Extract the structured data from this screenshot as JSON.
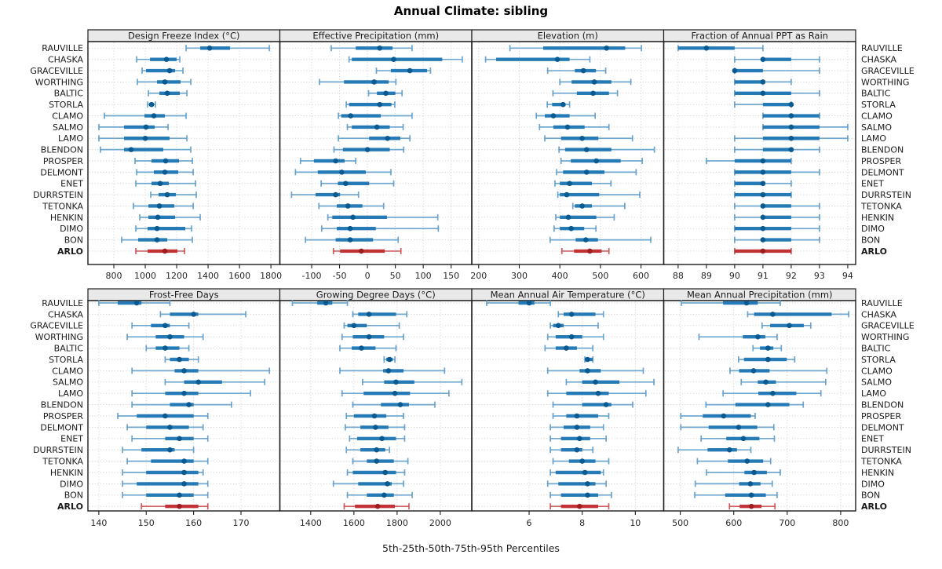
{
  "title": "Annual Climate: sibling",
  "caption": "5th-25th-50th-75th-95th Percentiles",
  "colors": {
    "blue_whisker": "#5b9bc9",
    "blue_bar": "#1f77b4",
    "blue_dot": "#0a5a92",
    "red_whisker": "#cc4a4c",
    "red_bar": "#bf2d30",
    "red_dot": "#9d1d20",
    "strip_bg": "#e9e9e9",
    "grid": "#c8c8c8",
    "border": "#1c1c1c",
    "text": "#1a1a1a",
    "axis_text": "#262626"
  },
  "chart_data": {
    "type": "dotplot-percentiles",
    "percentiles": [
      "5th",
      "25th",
      "50th",
      "75th",
      "95th"
    ],
    "legend_note": "5th-25th-50th-75th-95th Percentiles",
    "highlight": "ARLO",
    "stations": [
      "RAUVILLE",
      "CHASKA",
      "GRACEVILLE",
      "WORTHING",
      "BALTIC",
      "STORLA",
      "CLAMO",
      "SALMO",
      "LAMO",
      "BLENDON",
      "PROSPER",
      "DELMONT",
      "ENET",
      "DURRSTEIN",
      "TETONKA",
      "HENKIN",
      "DIMO",
      "BON",
      "ARLO"
    ],
    "panels": [
      {
        "title": "Design Freeze Index (°C)",
        "ticks": [
          800,
          1000,
          1200,
          1400,
          1600,
          1800
        ],
        "xlim": [
          635,
          1857
        ],
        "values": [
          [
            1260,
            1350,
            1410,
            1540,
            1790
          ],
          [
            945,
            1030,
            1135,
            1200,
            1220
          ],
          [
            980,
            1005,
            1155,
            1190,
            1240
          ],
          [
            950,
            1075,
            1125,
            1225,
            1290
          ],
          [
            1020,
            1090,
            1140,
            1220,
            1265
          ],
          [
            1015,
            1025,
            1040,
            1055,
            1065
          ],
          [
            740,
            995,
            1055,
            1125,
            1260
          ],
          [
            705,
            865,
            1005,
            1060,
            1145
          ],
          [
            705,
            865,
            1000,
            1155,
            1265
          ],
          [
            715,
            865,
            910,
            1115,
            1290
          ],
          [
            935,
            1040,
            1130,
            1215,
            1300
          ],
          [
            945,
            1055,
            1125,
            1210,
            1305
          ],
          [
            940,
            1040,
            1095,
            1150,
            1320
          ],
          [
            1035,
            1085,
            1140,
            1195,
            1325
          ],
          [
            925,
            1020,
            1090,
            1185,
            1305
          ],
          [
            965,
            1020,
            1080,
            1190,
            1350
          ],
          [
            940,
            1015,
            1075,
            1255,
            1295
          ],
          [
            850,
            955,
            1075,
            1140,
            1300
          ],
          [
            940,
            1015,
            1125,
            1205,
            1250
          ]
        ]
      },
      {
        "title": "Effective Precipitation (mm)",
        "ticks": [
          -100,
          -50,
          0,
          50,
          100,
          150
        ],
        "xlim": [
          -157,
          187
        ],
        "values": [
          [
            -65,
            -21,
            22,
            45,
            80
          ],
          [
            -33,
            -28,
            47,
            134,
            170
          ],
          [
            16,
            42,
            76,
            107,
            113
          ],
          [
            -86,
            -42,
            12,
            38,
            51
          ],
          [
            2,
            17,
            33,
            50,
            62
          ],
          [
            -38,
            -33,
            22,
            43,
            49
          ],
          [
            -52,
            -47,
            -30,
            24,
            80
          ],
          [
            -36,
            -28,
            17,
            40,
            64
          ],
          [
            -52,
            3,
            36,
            59,
            76
          ],
          [
            -60,
            -44,
            0,
            40,
            65
          ],
          [
            -120,
            -96,
            -57,
            -41,
            -21
          ],
          [
            -129,
            -89,
            -46,
            -3,
            42
          ],
          [
            -83,
            -53,
            -39,
            3,
            47
          ],
          [
            -136,
            -93,
            -57,
            -49,
            -16
          ],
          [
            -87,
            -55,
            -35,
            -9,
            29
          ],
          [
            -71,
            -63,
            -26,
            35,
            126
          ],
          [
            -82,
            -55,
            -31,
            15,
            127
          ],
          [
            -111,
            -57,
            -31,
            10,
            55
          ],
          [
            -61,
            -49,
            -11,
            31,
            60
          ]
        ]
      },
      {
        "title": "Elevation (m)",
        "ticks": [
          200,
          300,
          400,
          500,
          600
        ],
        "xlim": [
          183,
          656
        ],
        "values": [
          [
            277,
            359,
            515,
            561,
            601
          ],
          [
            217,
            243,
            394,
            424,
            474
          ],
          [
            370,
            437,
            458,
            489,
            513
          ],
          [
            400,
            429,
            485,
            527,
            575
          ],
          [
            383,
            442,
            482,
            521,
            542
          ],
          [
            369,
            381,
            408,
            414,
            424
          ],
          [
            342,
            363,
            384,
            424,
            487
          ],
          [
            350,
            384,
            419,
            461,
            521
          ],
          [
            363,
            403,
            455,
            495,
            579
          ],
          [
            398,
            413,
            466,
            527,
            633
          ],
          [
            403,
            427,
            490,
            550,
            603
          ],
          [
            392,
            408,
            466,
            510,
            588
          ],
          [
            388,
            400,
            424,
            479,
            526
          ],
          [
            395,
            400,
            417,
            497,
            597
          ],
          [
            432,
            437,
            455,
            479,
            560
          ],
          [
            390,
            400,
            421,
            490,
            534
          ],
          [
            386,
            400,
            428,
            460,
            489
          ],
          [
            376,
            439,
            464,
            494,
            624
          ],
          [
            405,
            435,
            474,
            503,
            521
          ]
        ]
      },
      {
        "title": "Fraction of Annual PPT as Rain",
        "ticks": [
          88,
          89,
          90,
          91,
          92,
          93,
          94
        ],
        "xlim": [
          87.49,
          94.28
        ],
        "values": [
          [
            88,
            88,
            89,
            90,
            91
          ],
          [
            90,
            91,
            91,
            92,
            93
          ],
          [
            90,
            90,
            90,
            91,
            93
          ],
          [
            90,
            90,
            91,
            91,
            92
          ],
          [
            90,
            90,
            91,
            92,
            93
          ],
          [
            90,
            91,
            92,
            92,
            92
          ],
          [
            91,
            91,
            92,
            93,
            93
          ],
          [
            91,
            91,
            92,
            93,
            94
          ],
          [
            90,
            91,
            92,
            93,
            94
          ],
          [
            90,
            91,
            92,
            92,
            93
          ],
          [
            89,
            90,
            91,
            92,
            92
          ],
          [
            90,
            90,
            91,
            92,
            93
          ],
          [
            90,
            90,
            91,
            91,
            92
          ],
          [
            90,
            90,
            91,
            92,
            92
          ],
          [
            90,
            91,
            91,
            92,
            93
          ],
          [
            90,
            91,
            91,
            92,
            93
          ],
          [
            90,
            90,
            91,
            92,
            93
          ],
          [
            90,
            91,
            91,
            92,
            93
          ],
          [
            90,
            90,
            91,
            92,
            92
          ]
        ]
      },
      {
        "title": "Frost-Free Days",
        "ticks": [
          140,
          150,
          160,
          170
        ],
        "xlim": [
          137.7,
          178.2
        ],
        "values": [
          [
            140,
            144,
            148,
            149,
            155
          ],
          [
            153,
            155,
            160,
            161,
            171
          ],
          [
            147,
            151,
            154,
            155,
            159
          ],
          [
            146,
            152,
            155,
            158,
            162
          ],
          [
            150,
            152,
            154,
            157,
            159
          ],
          [
            154,
            155,
            157,
            159,
            161
          ],
          [
            147,
            156,
            158,
            161,
            176
          ],
          [
            154,
            158,
            161,
            166,
            175
          ],
          [
            147,
            154,
            158,
            161,
            172
          ],
          [
            147,
            155,
            159,
            160,
            168
          ],
          [
            144,
            148,
            154,
            160,
            163
          ],
          [
            146,
            150,
            155,
            159,
            162
          ],
          [
            147,
            154,
            157,
            160,
            163
          ],
          [
            145,
            149,
            155,
            156,
            160
          ],
          [
            146,
            151,
            158,
            160,
            163
          ],
          [
            145,
            150,
            158,
            161,
            162
          ],
          [
            145,
            148,
            158,
            161,
            163
          ],
          [
            145,
            150,
            157,
            160,
            163
          ],
          [
            149,
            154,
            157,
            161,
            163
          ]
        ]
      },
      {
        "title": "Growing Degree Days (°C)",
        "ticks": [
          1400,
          1600,
          1800,
          2000
        ],
        "xlim": [
          1257,
          2146
        ],
        "values": [
          [
            1315,
            1430,
            1470,
            1500,
            1570
          ],
          [
            1595,
            1620,
            1670,
            1795,
            1845
          ],
          [
            1555,
            1570,
            1600,
            1660,
            1810
          ],
          [
            1545,
            1595,
            1670,
            1740,
            1830
          ],
          [
            1535,
            1590,
            1635,
            1700,
            1795
          ],
          [
            1740,
            1750,
            1765,
            1780,
            1790
          ],
          [
            1535,
            1735,
            1760,
            1830,
            2020
          ],
          [
            1640,
            1740,
            1795,
            1880,
            2100
          ],
          [
            1545,
            1645,
            1790,
            1860,
            2040
          ],
          [
            1595,
            1725,
            1815,
            1855,
            1975
          ],
          [
            1565,
            1600,
            1695,
            1750,
            1830
          ],
          [
            1560,
            1630,
            1700,
            1760,
            1835
          ],
          [
            1580,
            1615,
            1730,
            1795,
            1835
          ],
          [
            1565,
            1630,
            1705,
            1745,
            1765
          ],
          [
            1595,
            1660,
            1705,
            1785,
            1850
          ],
          [
            1570,
            1595,
            1745,
            1795,
            1835
          ],
          [
            1505,
            1620,
            1755,
            1775,
            1830
          ],
          [
            1570,
            1660,
            1740,
            1785,
            1870
          ],
          [
            1555,
            1605,
            1710,
            1790,
            1855
          ]
        ]
      },
      {
        "title": "Mean Annual Air Temperature (°C)",
        "ticks": [
          6,
          8,
          10
        ],
        "xlim": [
          3.84,
          11.07
        ],
        "values": [
          [
            4.4,
            5.6,
            6.0,
            6.2,
            6.8
          ],
          [
            7.1,
            7.3,
            7.6,
            8.5,
            8.8
          ],
          [
            6.8,
            6.9,
            7.1,
            7.3,
            8.6
          ],
          [
            6.7,
            7.0,
            7.6,
            8.0,
            8.8
          ],
          [
            6.6,
            7.0,
            7.4,
            7.8,
            8.4
          ],
          [
            8.1,
            8.1,
            8.2,
            8.4,
            8.4
          ],
          [
            6.7,
            7.9,
            8.2,
            8.7,
            10.3
          ],
          [
            7.4,
            8.0,
            8.5,
            9.4,
            10.7
          ],
          [
            6.7,
            7.4,
            8.6,
            9.0,
            10.4
          ],
          [
            6.9,
            8.0,
            8.9,
            9.1,
            9.9
          ],
          [
            6.9,
            7.4,
            7.8,
            8.6,
            9.0
          ],
          [
            6.8,
            7.3,
            7.8,
            8.3,
            8.8
          ],
          [
            6.8,
            7.2,
            7.9,
            8.3,
            8.9
          ],
          [
            6.8,
            7.2,
            7.8,
            8.0,
            8.4
          ],
          [
            6.9,
            7.5,
            8.0,
            8.5,
            9.0
          ],
          [
            6.8,
            7.0,
            8.1,
            8.7,
            8.8
          ],
          [
            6.7,
            7.1,
            8.2,
            8.5,
            8.9
          ],
          [
            6.8,
            7.2,
            8.2,
            8.6,
            9.1
          ],
          [
            6.8,
            7.2,
            7.9,
            8.6,
            9.0
          ]
        ]
      },
      {
        "title": "Mean Annual Precipitation (mm)",
        "ticks": [
          500,
          600,
          700,
          800
        ],
        "xlim": [
          469,
          828
        ],
        "values": [
          [
            502,
            580,
            624,
            645,
            687
          ],
          [
            626,
            638,
            673,
            783,
            815
          ],
          [
            653,
            668,
            704,
            731,
            744
          ],
          [
            535,
            617,
            645,
            659,
            681
          ],
          [
            636,
            649,
            664,
            674,
            689
          ],
          [
            609,
            619,
            664,
            699,
            714
          ],
          [
            593,
            610,
            637,
            667,
            774
          ],
          [
            614,
            645,
            660,
            679,
            772
          ],
          [
            580,
            646,
            673,
            717,
            763
          ],
          [
            548,
            603,
            664,
            704,
            730
          ],
          [
            501,
            542,
            581,
            632,
            640
          ],
          [
            501,
            553,
            609,
            644,
            675
          ],
          [
            539,
            586,
            618,
            648,
            676
          ],
          [
            496,
            551,
            592,
            606,
            632
          ],
          [
            532,
            589,
            625,
            655,
            669
          ],
          [
            549,
            620,
            638,
            662,
            687
          ],
          [
            528,
            610,
            631,
            650,
            672
          ],
          [
            527,
            584,
            633,
            660,
            681
          ],
          [
            592,
            611,
            633,
            652,
            677
          ]
        ]
      }
    ]
  }
}
